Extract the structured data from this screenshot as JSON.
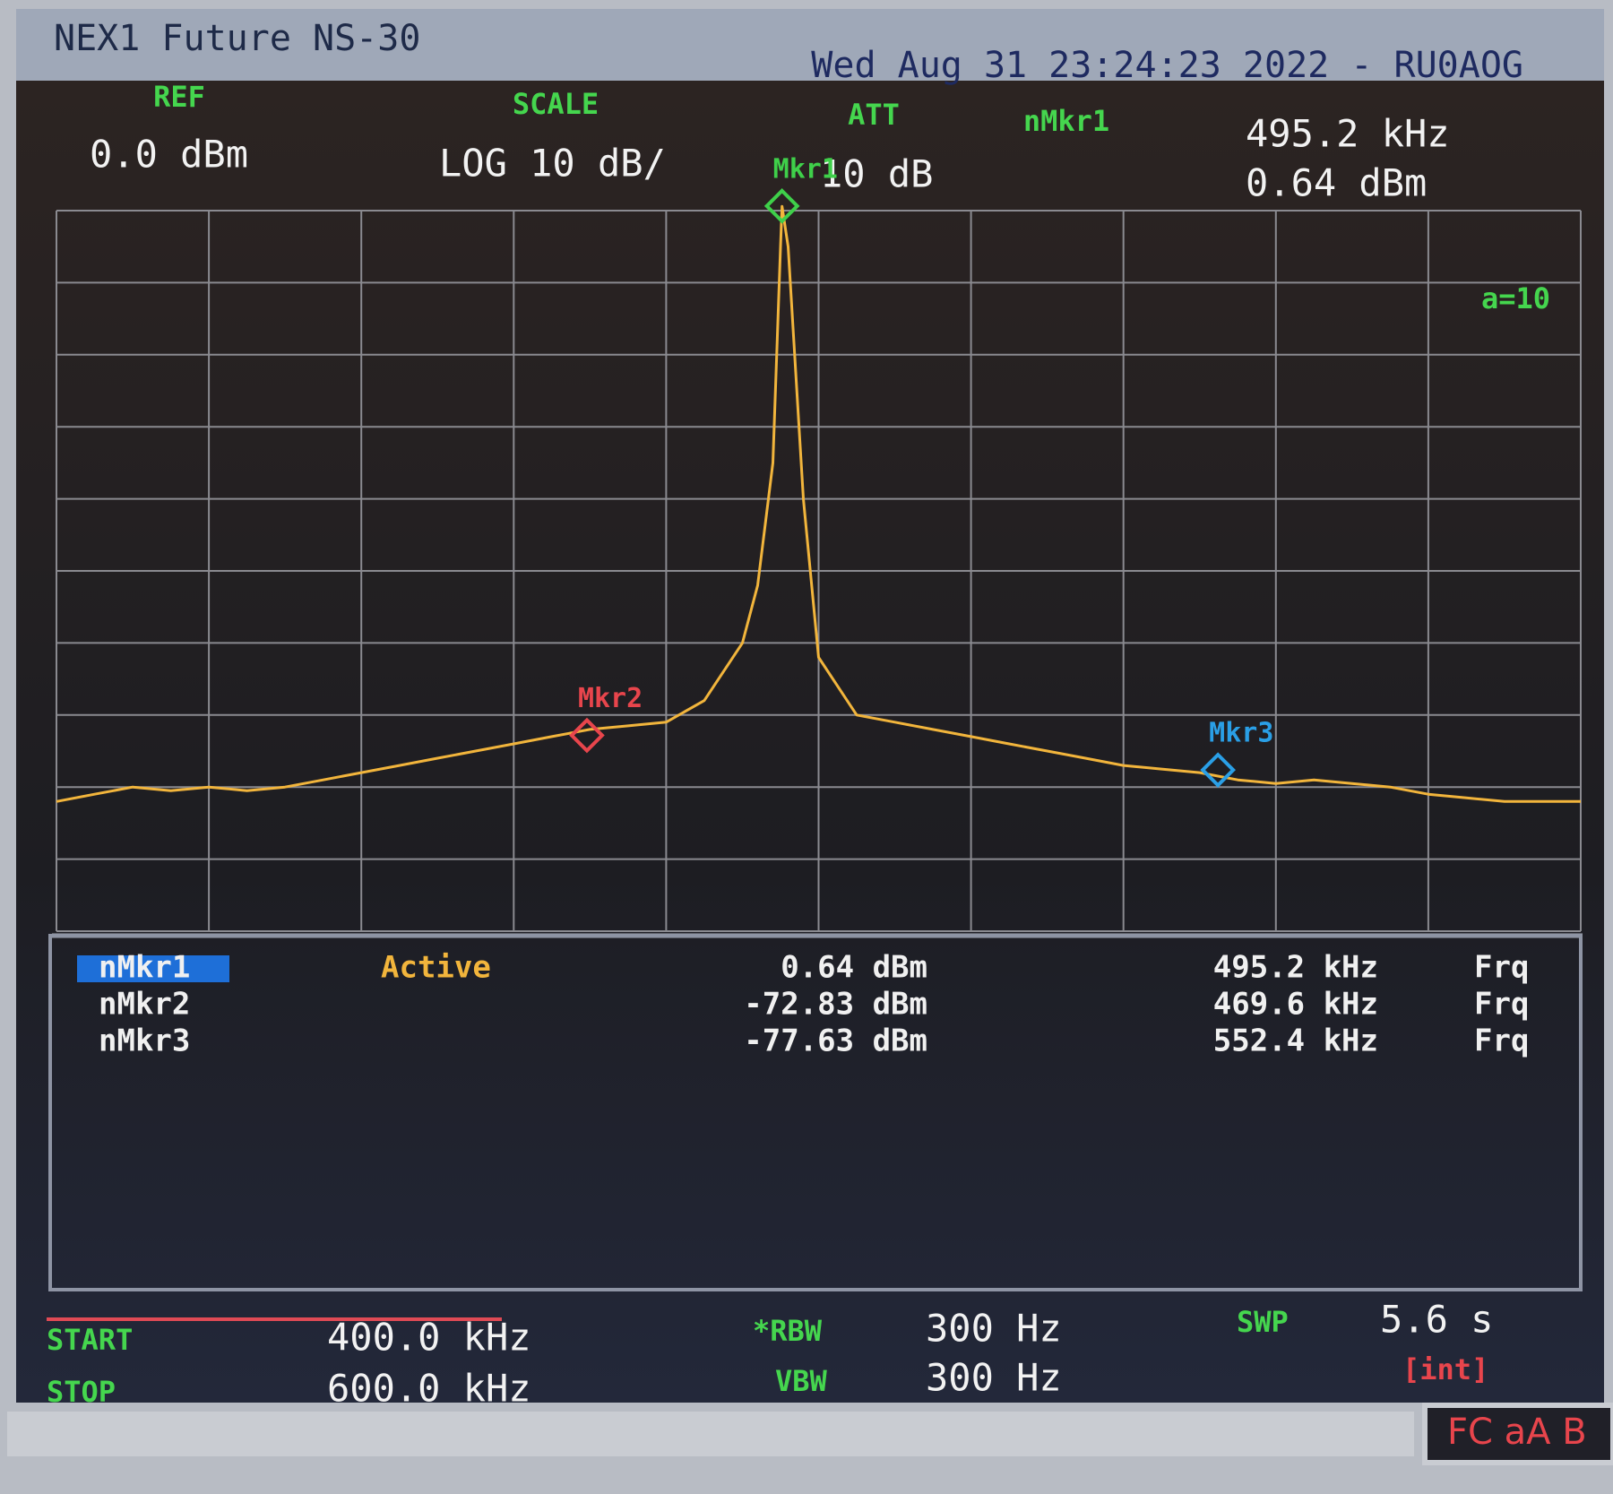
{
  "header": {
    "title": "NEX1 Future NS-30",
    "datetime": "Wed Aug 31 23:24:23 2022 - RU0AOG"
  },
  "settings": {
    "ref_label": "REF",
    "ref": "0.0 dBm",
    "scale_label": "SCALE",
    "scale": "LOG 10 dB/",
    "att_label": "ATT",
    "att": "10 dB",
    "marker_label": "nMkr1",
    "marker_freq": "495.2 kHz",
    "marker_level": "0.64 dBm",
    "average": "a=10"
  },
  "chart_data": {
    "type": "line",
    "color": "#f2b53c",
    "grid": true,
    "xlim": [
      400,
      600
    ],
    "ylim": [
      -100,
      0
    ],
    "x": [
      400,
      405,
      410,
      415,
      420,
      425,
      430,
      435,
      440,
      445,
      450,
      455,
      460,
      465,
      470,
      475,
      480,
      485,
      490,
      492,
      494,
      495,
      495.2,
      496,
      498,
      500,
      505,
      510,
      515,
      520,
      525,
      530,
      535,
      540,
      545,
      550,
      555,
      560,
      565,
      570,
      575,
      580,
      585,
      590,
      595,
      600
    ],
    "values": [
      -82,
      -81,
      -80,
      -80.5,
      -80,
      -80.5,
      -80,
      -79,
      -78,
      -77,
      -76,
      -75,
      -74,
      -73,
      -72,
      -71.5,
      -71,
      -68,
      -60,
      -52,
      -35,
      -5,
      0.6,
      -5,
      -40,
      -62,
      -70,
      -71,
      -72,
      -73,
      -74,
      -75,
      -76,
      -77,
      -77.5,
      -78,
      -79,
      -79.5,
      -79,
      -79.5,
      -80,
      -81,
      -81.5,
      -82,
      -82,
      -82
    ],
    "markers": [
      {
        "label": "Mkr1",
        "x": 495.2,
        "y": 0.64,
        "color": "#3fd04a"
      },
      {
        "label": "Mkr2",
        "x": 469.6,
        "y": -72.83,
        "color": "#e8454c"
      },
      {
        "label": "Mkr3",
        "x": 552.4,
        "y": -77.63,
        "color": "#2a9fe6"
      }
    ]
  },
  "table": {
    "rows": [
      {
        "name": "nMkr1",
        "status": "Active",
        "level": "0.64 dBm",
        "freq": "495.2 kHz",
        "mode": "Frq"
      },
      {
        "name": "nMkr2",
        "level": "-72.83 dBm",
        "freq": "469.6 kHz",
        "mode": "Frq"
      },
      {
        "name": "nMkr3",
        "level": "-77.63 dBm",
        "freq": "552.4 kHz",
        "mode": "Frq"
      }
    ]
  },
  "footer": {
    "start_label": "START",
    "start": "400.0 kHz",
    "stop_label": "STOP",
    "stop": "600.0 kHz",
    "rbw_label": "*RBW",
    "rbw": "300 Hz",
    "vbw_label": "VBW",
    "vbw": "300 Hz",
    "swp_label": "SWP",
    "swp": "5.6 s",
    "swp_mode": "[int]",
    "status": "FC aA B"
  }
}
